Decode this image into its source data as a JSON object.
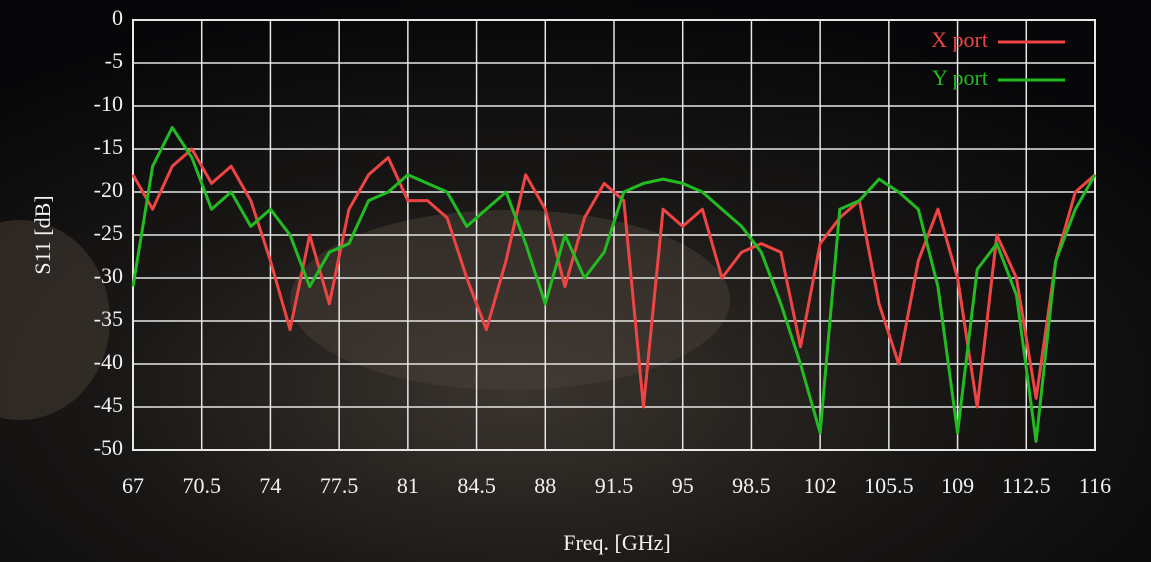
{
  "chart_data": {
    "type": "line",
    "xlabel": "Freq. [GHz]",
    "ylabel": "S11 [dB]",
    "x": [
      67,
      68,
      69,
      70,
      71,
      72,
      73,
      74,
      75,
      76,
      77,
      78,
      79,
      80,
      81,
      82,
      83,
      84,
      85,
      86,
      87,
      88,
      89,
      90,
      91,
      92,
      93,
      94,
      95,
      96,
      97,
      98,
      99,
      100,
      101,
      102,
      103,
      104,
      105,
      106,
      107,
      108,
      109,
      110,
      111,
      112,
      113,
      114,
      115,
      116
    ],
    "series": [
      {
        "name": "X port",
        "color": "#ee4444",
        "values": [
          -18,
          -22,
          -17,
          -15,
          -19,
          -17,
          -21,
          -28,
          -36,
          -25,
          -33,
          -22,
          -18,
          -16,
          -21,
          -21,
          -23,
          -30,
          -36,
          -28,
          -18,
          -22,
          -31,
          -23,
          -19,
          -21,
          -45,
          -22,
          -24,
          -22,
          -30,
          -27,
          -26,
          -27,
          -38,
          -26,
          -23,
          -21,
          -33,
          -40,
          -28,
          -22,
          -30,
          -45,
          -25,
          -30,
          -44,
          -28,
          -20,
          -18
        ]
      },
      {
        "name": "Y port",
        "color": "#22bb22",
        "values": [
          -31,
          -17,
          -12.5,
          -16,
          -22,
          -20,
          -24,
          -22,
          -25,
          -31,
          -27,
          -26,
          -21,
          -20,
          -18,
          -19,
          -20,
          -24,
          -22,
          -20,
          -26,
          -33,
          -25,
          -30,
          -27,
          -20,
          -19,
          -18.5,
          -19,
          -20,
          -22,
          -24,
          -27,
          -33,
          -40,
          -48,
          -22,
          -21,
          -18.5,
          -20,
          -22,
          -31,
          -48,
          -29,
          -26,
          -32,
          -49,
          -28,
          -22,
          -18
        ]
      }
    ],
    "xlim": [
      67,
      116
    ],
    "xticks": [
      67,
      70.5,
      74,
      77.5,
      81,
      84.5,
      88,
      91.5,
      95,
      98.5,
      102,
      105.5,
      109,
      112.5,
      116
    ],
    "ylim": [
      -50,
      0
    ],
    "yticks": [
      0,
      -5,
      -10,
      -15,
      -20,
      -25,
      -30,
      -35,
      -40,
      -45,
      -50
    ],
    "grid": true,
    "legend": "top-right"
  }
}
